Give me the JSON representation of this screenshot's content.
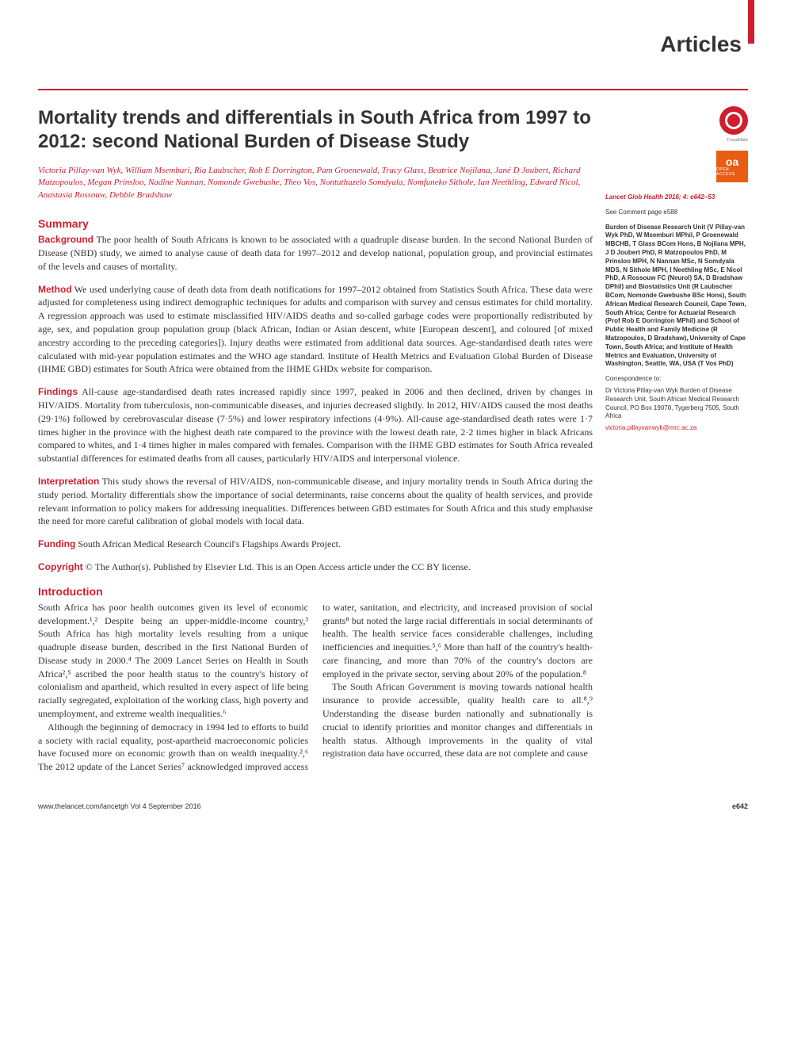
{
  "journal": {
    "section_label": "Articles",
    "ref": "Lancet Glob Health 2016; 4: e642–53",
    "comment_ref": "See Comment page e588",
    "footer_left": "www.thelancet.com/lancetgh   Vol 4   September 2016",
    "page_number": "e642"
  },
  "badges": {
    "crossmark_label": "CrossMark",
    "oa_text": "oa",
    "oa_sub": "OPEN ACCESS"
  },
  "colors": {
    "accent": "#d01e2f",
    "oa_bg": "#e85d12",
    "text": "#333333",
    "bg": "#ffffff"
  },
  "article": {
    "title": "Mortality trends and differentials in South Africa from 1997 to 2012: second National Burden of Disease Study",
    "authors": "Victoria Pillay-van Wyk, William Msemburi, Ria Laubscher, Rob E Dorrington, Pam Groenewald, Tracy Glass, Beatrice Nojilana, Jané D Joubert, Richard Matzopoulos, Megan Prinsloo, Nadine Nannan, Nomonde Gwebushe, Theo Vos, Nontuthuzelo Somdyala, Nomfuneko Sithole, Ian Neethling, Edward Nicol, Anastasia Rossouw, Debbie Bradshaw"
  },
  "summary": {
    "heading": "Summary",
    "background": {
      "label": "Background",
      "text": " The poor health of South Africans is known to be associated with a quadruple disease burden. In the second National Burden of Disease (NBD) study, we aimed to analyse cause of death data for 1997–2012 and develop national, population group, and provincial estimates of the levels and causes of mortality."
    },
    "method": {
      "label": "Method",
      "text": " We used underlying cause of death data from death notifications for 1997–2012 obtained from Statistics South Africa. These data were adjusted for completeness using indirect demographic techniques for adults and comparison with survey and census estimates for child mortality. A regression approach was used to estimate misclassified HIV/AIDS deaths and so-called garbage codes were proportionally redistributed by age, sex, and population group population group (black African, Indian or Asian descent, white [European descent], and coloured [of mixed ancestry according to the preceding categories]). Injury deaths were estimated from additional data sources. Age-standardised death rates were calculated with mid-year population estimates and the WHO age standard. Institute of Health Metrics and Evaluation Global Burden of Disease (IHME GBD) estimates for South Africa were obtained from the IHME GHDx website for comparison."
    },
    "findings": {
      "label": "Findings",
      "text": " All-cause age-standardised death rates increased rapidly since 1997, peaked in 2006 and then declined, driven by changes in HIV/AIDS. Mortality from tuberculosis, non-communicable diseases, and injuries decreased slightly. In 2012, HIV/AIDS caused the most deaths (29·1%) followed by cerebrovascular disease (7·5%) and lower respiratory infections (4·9%). All-cause age-standardised death rates were 1·7 times higher in the province with the highest death rate compared to the province with the lowest death rate, 2·2 times higher in black Africans compared to whites, and 1·4 times higher in males compared with females. Comparison with the IHME GBD estimates for South Africa revealed substantial differences for estimated deaths from all causes, particularly HIV/AIDS and interpersonal violence."
    },
    "interpretation": {
      "label": "Interpretation",
      "text": " This study shows the reversal of HIV/AIDS, non-communicable disease, and injury mortality trends in South Africa during the study period. Mortality differentials show the importance of social determinants, raise concerns about the quality of health services, and provide relevant information to policy makers for addressing inequalities. Differences between GBD estimates for South Africa and this study emphasise the need for more careful calibration of global models with local data."
    },
    "funding": {
      "label": "Funding",
      "text": " South African Medical Research Council's Flagships Awards Project."
    },
    "copyright": {
      "label": "Copyright",
      "text": " © The Author(s). Published by Elsevier Ltd. This is an Open Access article under the CC BY license."
    }
  },
  "introduction": {
    "heading": "Introduction",
    "p1": "South Africa has poor health outcomes given its level of economic development.¹,² Despite being an upper-middle-income country,³ South Africa has high mortality levels resulting from a unique quadruple disease burden, described in the first National Burden of Disease study in 2000.⁴ The 2009 Lancet Series on Health in South Africa²,⁵ ascribed the poor health status to the country's history of colonialism and apartheid, which resulted in every aspect of life being racially segregated, exploitation of the working class, high poverty and unemployment, and extreme wealth inequalities.⁶",
    "p2": "Although the beginning of democracy in 1994 led to efforts to build a society with racial equality, post-apartheid macroeconomic policies have focused more on economic growth than on wealth inequality.²,⁶ The 2012 update of the Lancet Series⁷ acknowledged improved access to water, sanitation, and electricity, and increased provision of social grants⁸ but noted the large racial differentials in social determinants of health. The health service faces considerable challenges, including inefficiencies and inequities.⁵,⁶ More than half of the country's health-care financing, and more than 70% of the country's doctors are employed in the private sector, serving about 20% of the population.⁸",
    "p3": "The South African Government is moving towards national health insurance to provide accessible, quality health care to all.⁸,⁹ Understanding the disease burden nationally and subnationally is crucial to identify priorities and monitor changes and differentials in health status. Although improvements in the quality of vital registration data have occurred, these data are not complete and cause"
  },
  "affiliations": {
    "text": "Burden of Disease Research Unit (V Pillay-van Wyk PhD, W Msemburi MPhil, P Groenewald MBCHB, T Glass BCom Hons, B Nojilana MPH, J D Joubert PhD, R Matzopoulos PhD, M Prinsloo MPH, N Nannan MSc, N Somdyala MDS, N Sithole MPH, I Neethling MSc, E Nicol PhD, A Rossouw FC (Neurol) SA, D Bradshaw DPhil) and Biostatistics Unit (R Laubscher BCom, Nomonde Gwebushe BSc Hons), South African Medical Research Council, Cape Town, South Africa; Centre for Actuarial Research (Prof Rob E Dorrington MPhil) and School of Public Health and Family Medicine (R Matzopoulos, D Bradshaw), University of Cape Town, South Africa; and Institute of Health Metrics and Evaluation, University of Washington, Seattle, WA, USA (T Vos PhD)"
  },
  "correspondence": {
    "label": "Correspondence to:",
    "text": "Dr Victoria Pillay-van Wyk Burden of Disease Research Unit, South African Medical Research Council, PO Box 19070, Tygerberg 7505, South Africa",
    "email": "victoria.pillayvanwyk@mrc.ac.za"
  }
}
